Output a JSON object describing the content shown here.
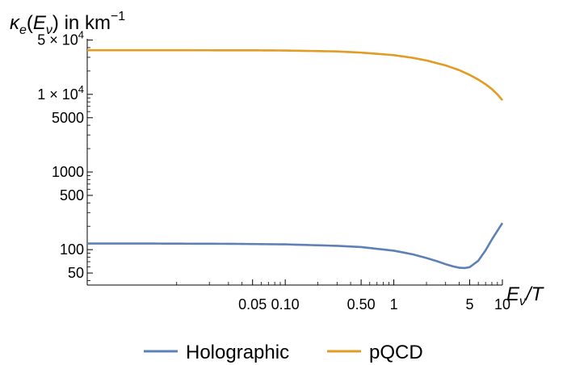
{
  "chart_data": {
    "type": "line",
    "title": "",
    "ylabel_parts": {
      "kappa": "κ",
      "e": "e",
      "open": "(",
      "E": "E",
      "nu": "ν",
      "close": ")",
      "unit": " in km",
      "exp": "−1"
    },
    "xlabel_parts": {
      "E": "E",
      "nu": "ν",
      "slash_T": "/T"
    },
    "x_scale": "log",
    "y_scale": "log",
    "xlim": [
      0.0015,
      10
    ],
    "ylim": [
      35,
      52000
    ],
    "x_ticks": [
      {
        "value": 0.05,
        "label": "0.05"
      },
      {
        "value": 0.1,
        "label": "0.10"
      },
      {
        "value": 0.5,
        "label": "0.50"
      },
      {
        "value": 1,
        "label": "1"
      },
      {
        "value": 5,
        "label": "5"
      },
      {
        "value": 10,
        "label": "10"
      }
    ],
    "x_minor_ticks": [
      0.01,
      0.02,
      0.03,
      0.04,
      0.06,
      0.07,
      0.08,
      0.09,
      0.2,
      0.3,
      0.4,
      0.6,
      0.7,
      0.8,
      0.9,
      2,
      3,
      4,
      6,
      7,
      8,
      9
    ],
    "y_ticks": [
      {
        "value": 50,
        "label": "50"
      },
      {
        "value": 100,
        "label": "100"
      },
      {
        "value": 500,
        "label": "500"
      },
      {
        "value": 1000,
        "label": "1000"
      },
      {
        "value": 5000,
        "label": "5000"
      },
      {
        "value": 10000,
        "label": "1 × 10",
        "exp": "4"
      },
      {
        "value": 50000,
        "label": "5 × 10",
        "exp": "4"
      }
    ],
    "y_minor_ticks": [
      40,
      60,
      70,
      80,
      90,
      200,
      300,
      400,
      600,
      700,
      800,
      900,
      2000,
      3000,
      4000,
      6000,
      7000,
      8000,
      9000,
      20000,
      30000,
      40000
    ],
    "series": [
      {
        "name": "Holographic",
        "color": "#5e81b5",
        "x": [
          0.0015,
          0.005,
          0.01,
          0.03,
          0.1,
          0.3,
          0.5,
          1,
          1.5,
          2,
          2.5,
          3,
          3.5,
          4,
          4.5,
          5,
          6,
          7,
          8,
          9,
          10
        ],
        "y": [
          120,
          120,
          119.5,
          119,
          117,
          112,
          108,
          97,
          87,
          78,
          71,
          65,
          61,
          58.5,
          58,
          59.5,
          72,
          98,
          135,
          175,
          220
        ]
      },
      {
        "name": "pQCD",
        "color": "#e19c24",
        "x": [
          0.0015,
          0.01,
          0.05,
          0.1,
          0.3,
          0.5,
          1,
          1.5,
          2,
          3,
          4,
          5,
          6,
          7,
          8,
          9,
          10
        ],
        "y": [
          37000,
          37000,
          36900,
          36700,
          35700,
          34500,
          32000,
          29500,
          27300,
          23600,
          20500,
          17800,
          15500,
          13500,
          11700,
          10000,
          8400
        ]
      }
    ],
    "legend": {
      "placement": "bottom",
      "entries": [
        "Holographic",
        "pQCD"
      ]
    },
    "grid": false
  }
}
